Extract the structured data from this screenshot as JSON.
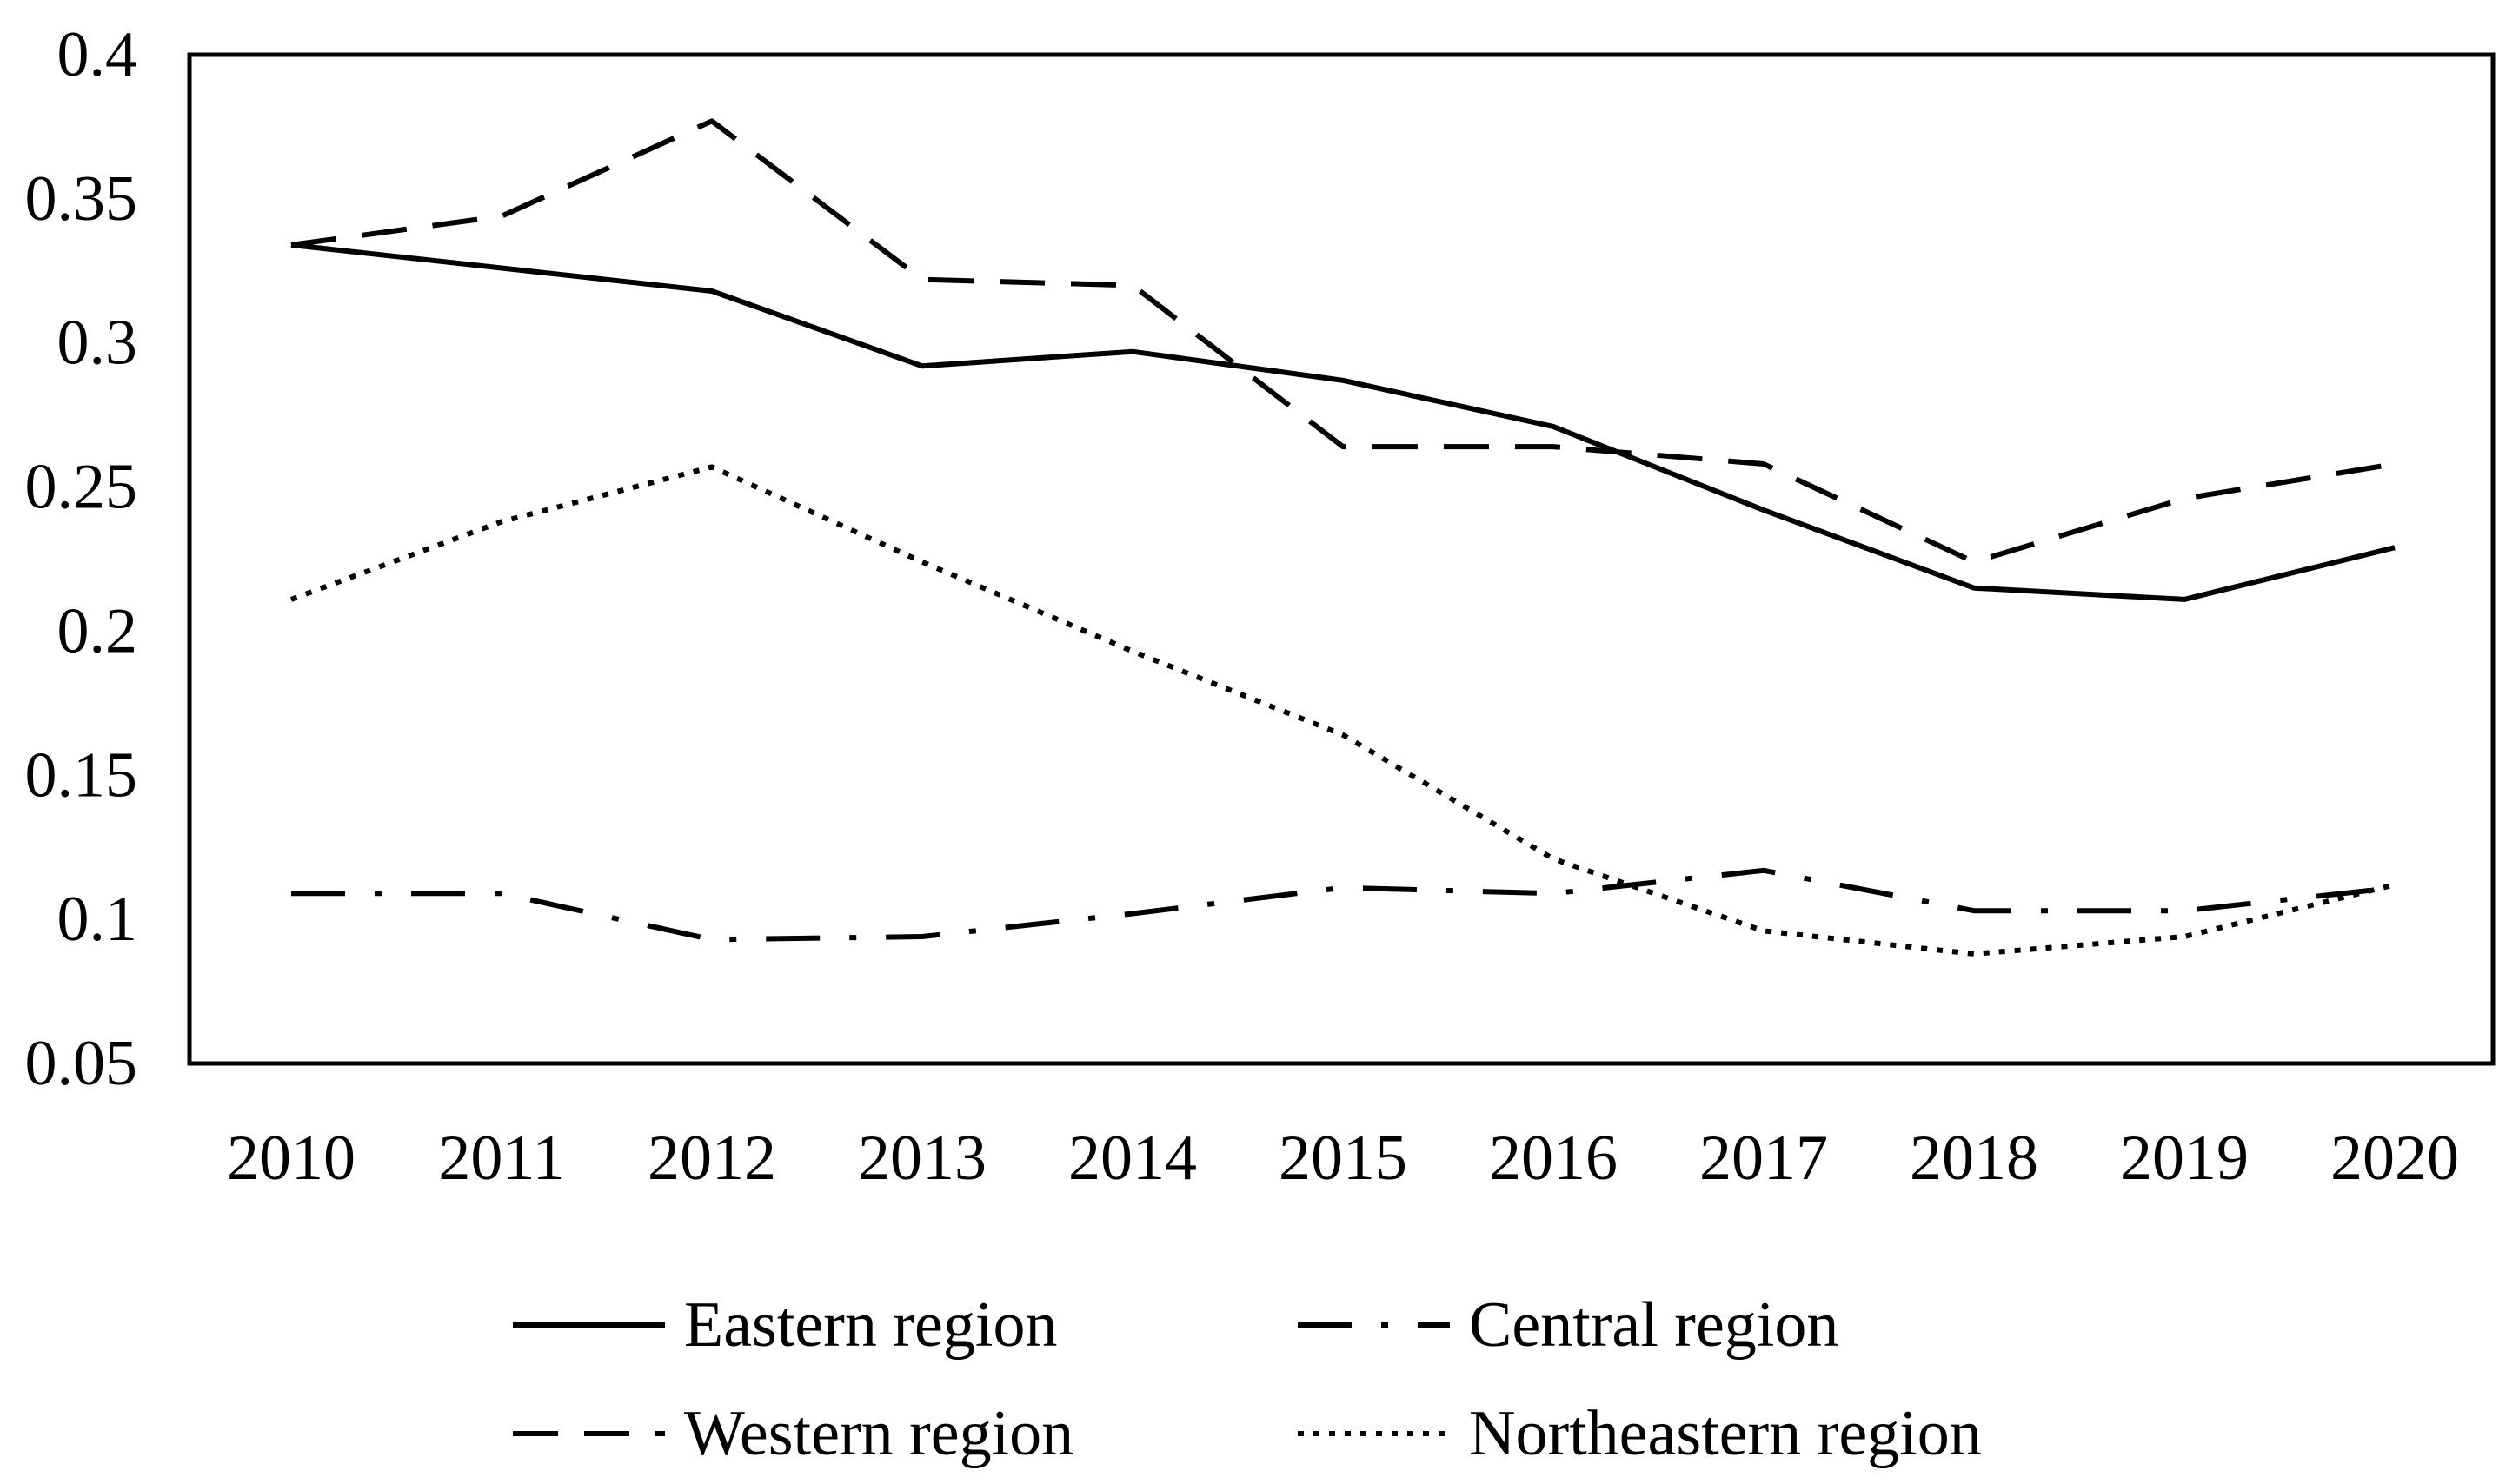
{
  "chart_data": {
    "type": "line",
    "title": "",
    "xlabel": "",
    "ylabel": "",
    "x": [
      2010,
      2011,
      2012,
      2013,
      2014,
      2015,
      2016,
      2017,
      2018,
      2019,
      2020
    ],
    "x_tick_labels": [
      "2010",
      "2011",
      "2012",
      "2013",
      "2014",
      "2015",
      "2016",
      "2017",
      "2018",
      "2019",
      "2020"
    ],
    "ylim": [
      0.05,
      0.4
    ],
    "y_ticks": [
      0.05,
      0.1,
      0.15,
      0.2,
      0.25,
      0.3,
      0.35,
      0.4
    ],
    "y_tick_labels": [
      "0.05",
      "0.1",
      "0.15",
      "0.2",
      "0.25",
      "0.3",
      "0.35",
      "0.4"
    ],
    "grid": false,
    "legend_position": "bottom",
    "series": [
      {
        "name": "Eastern region",
        "style": "solid",
        "values": [
          0.334,
          0.326,
          0.318,
          0.292,
          0.297,
          0.287,
          0.271,
          0.242,
          0.215,
          0.211,
          0.229
        ]
      },
      {
        "name": "Central region",
        "style": "dashdot",
        "values": [
          0.109,
          0.109,
          0.093,
          0.094,
          0.102,
          0.111,
          0.109,
          0.117,
          0.103,
          0.103,
          0.111
        ]
      },
      {
        "name": "Western region",
        "style": "dashed",
        "values": [
          0.334,
          0.344,
          0.377,
          0.322,
          0.32,
          0.264,
          0.264,
          0.258,
          0.224,
          0.246,
          0.258
        ]
      },
      {
        "name": "Northeastern region",
        "style": "dotted",
        "values": [
          0.211,
          0.238,
          0.257,
          0.224,
          0.193,
          0.164,
          0.121,
          0.096,
          0.088,
          0.094,
          0.112
        ]
      }
    ]
  }
}
